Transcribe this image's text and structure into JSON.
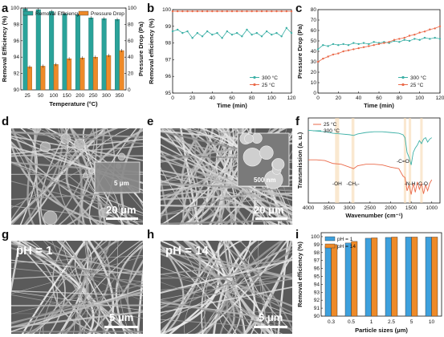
{
  "panels": {
    "a": "a",
    "b": "b",
    "c": "c",
    "d": "d",
    "e": "e",
    "f": "f",
    "g": "g",
    "h": "h",
    "i": "i"
  },
  "micrographs": {
    "d": {
      "scale": "20 μm",
      "inset": "5 μm"
    },
    "e": {
      "scale": "20 μm",
      "inset": "500 nm"
    },
    "g": {
      "scale": "5 μm",
      "ph": "pH = 1"
    },
    "h": {
      "scale": "5 μm",
      "ph": "pH = 14"
    }
  },
  "colors": {
    "teal": "#2aa39a",
    "orange": "#ee8a28",
    "red": "#ea6a4a",
    "teal_line": "#3cb0a6",
    "blue": "#3da0dd"
  },
  "chart_data": [
    {
      "id": "a",
      "type": "bar",
      "categories": [
        "25",
        "50",
        "100",
        "150",
        "200",
        "250",
        "300",
        "350"
      ],
      "series": [
        {
          "name": "Removal Efficiency",
          "axis": "left",
          "values": [
            99.9,
            99.8,
            99.6,
            99.3,
            99.2,
            98.8,
            98.7,
            98.6
          ]
        },
        {
          "name": "Pressure Drop",
          "axis": "right",
          "values": [
            28,
            29,
            31,
            38,
            39,
            40,
            42,
            48
          ]
        }
      ],
      "xlabel": "Temperature (°C)",
      "ylabel": "Removal Efficiency (%)",
      "ylabel_right": "Pressure Drop (Pa)",
      "ylim": [
        90,
        100
      ],
      "ylim_right": [
        0,
        100
      ],
      "yticks": [
        "90",
        "92",
        "94",
        "96",
        "98",
        "100"
      ],
      "yticks_right": [
        "0",
        "20",
        "40",
        "60",
        "80",
        "100"
      ]
    },
    {
      "id": "b",
      "type": "line",
      "x": [
        0,
        5,
        10,
        15,
        20,
        25,
        30,
        35,
        40,
        45,
        50,
        55,
        60,
        65,
        70,
        75,
        80,
        85,
        90,
        95,
        100,
        105,
        110,
        115,
        120
      ],
      "series": [
        {
          "name": "300 °C",
          "values": [
            98.7,
            98.8,
            98.6,
            98.7,
            98.3,
            98.6,
            98.4,
            98.7,
            98.5,
            98.6,
            98.3,
            98.7,
            98.5,
            98.6,
            98.4,
            98.8,
            98.5,
            98.6,
            98.4,
            98.7,
            98.5,
            98.6,
            98.4,
            98.9,
            98.6
          ]
        },
        {
          "name": "25 °C",
          "values": [
            99.9,
            99.9,
            99.9,
            99.9,
            99.9,
            99.9,
            99.9,
            99.9,
            99.9,
            99.9,
            99.9,
            99.9,
            99.9,
            99.9,
            99.9,
            99.9,
            99.9,
            99.9,
            99.9,
            99.9,
            99.9,
            99.9,
            99.9,
            99.9,
            99.9
          ]
        }
      ],
      "xlabel": "Time (min)",
      "ylabel": "Removal efficiency (%)",
      "xlim": [
        0,
        120
      ],
      "ylim": [
        95,
        100
      ],
      "xticks": [
        "0",
        "20",
        "40",
        "60",
        "80",
        "100",
        "120"
      ],
      "yticks": [
        "95",
        "96",
        "97",
        "98",
        "99",
        "100"
      ]
    },
    {
      "id": "c",
      "type": "line",
      "x": [
        0,
        5,
        10,
        15,
        20,
        25,
        30,
        35,
        40,
        45,
        50,
        55,
        60,
        65,
        70,
        75,
        80,
        85,
        90,
        95,
        100,
        105,
        110,
        115,
        120
      ],
      "series": [
        {
          "name": "300 °C",
          "values": [
            42,
            46,
            45,
            47,
            46,
            47,
            46,
            48,
            47,
            48,
            47,
            49,
            48,
            49,
            48,
            50,
            49,
            51,
            50,
            52,
            51,
            53,
            52,
            53,
            52
          ]
        },
        {
          "name": "25 °C",
          "values": [
            30,
            33,
            35,
            37,
            38,
            40,
            41,
            42,
            43,
            44,
            45,
            46,
            47,
            48,
            49,
            51,
            52,
            53,
            55,
            56,
            58,
            59,
            61,
            62,
            64
          ]
        }
      ],
      "xlabel": "Time (min)",
      "ylabel": "Pressure Drop (Pa)",
      "xlim": [
        0,
        120
      ],
      "ylim": [
        0,
        80
      ],
      "xticks": [
        "0",
        "20",
        "40",
        "60",
        "80",
        "100",
        "120"
      ],
      "yticks": [
        "0",
        "10",
        "20",
        "30",
        "40",
        "50",
        "60",
        "70",
        "80"
      ]
    },
    {
      "id": "f",
      "type": "line",
      "x": [
        4000,
        3800,
        3600,
        3400,
        3200,
        3000,
        2900,
        2800,
        2600,
        2400,
        2200,
        2000,
        1800,
        1700,
        1650,
        1600,
        1550,
        1500,
        1450,
        1400,
        1350,
        1300,
        1250,
        1200,
        1150,
        1100,
        1050,
        1000
      ],
      "series": [
        {
          "name": "25 °C",
          "values": [
            0.52,
            0.52,
            0.51,
            0.47,
            0.46,
            0.42,
            0.4,
            0.44,
            0.46,
            0.46,
            0.45,
            0.42,
            0.4,
            0.3,
            0.28,
            0.1,
            0.18,
            0.05,
            0.2,
            0.08,
            0.22,
            0.12,
            0.2,
            0.06,
            0.18,
            0.1,
            0.2,
            0.25
          ]
        },
        {
          "name": "300 °C",
          "values": [
            0.92,
            0.91,
            0.9,
            0.88,
            0.87,
            0.86,
            0.85,
            0.87,
            0.89,
            0.9,
            0.9,
            0.89,
            0.88,
            0.86,
            0.82,
            0.62,
            0.55,
            0.45,
            0.62,
            0.68,
            0.72,
            0.78,
            0.74,
            0.8,
            0.82,
            0.76,
            0.8,
            0.82
          ]
        }
      ],
      "annotations": [
        "-OH",
        "-CH₂-",
        "-C=O",
        "-N-H",
        "-C-O"
      ],
      "xlabel": "Wavenumber (cm⁻¹)",
      "ylabel": "Transmission (a. u.)",
      "xlim": [
        4000,
        800
      ],
      "xticks": [
        "4000",
        "3500",
        "3000",
        "2500",
        "2000",
        "1500",
        "1000"
      ]
    },
    {
      "id": "i",
      "type": "bar",
      "categories": [
        "0.3",
        "0.5",
        "1",
        "2.5",
        "5",
        "10"
      ],
      "series": [
        {
          "name": "pH = 1",
          "values": [
            98.8,
            99.2,
            99.8,
            99.9,
            99.95,
            99.95
          ]
        },
        {
          "name": "pH = 14",
          "values": [
            99.0,
            99.4,
            99.85,
            99.95,
            99.95,
            99.95
          ]
        }
      ],
      "xlabel": "Particle sizes (μm)",
      "ylabel": "Removal efficiency (%)",
      "ylim": [
        90,
        100.5
      ],
      "yticks": [
        "90",
        "91",
        "92",
        "93",
        "94",
        "95",
        "96",
        "97",
        "98",
        "99",
        "100"
      ]
    }
  ]
}
